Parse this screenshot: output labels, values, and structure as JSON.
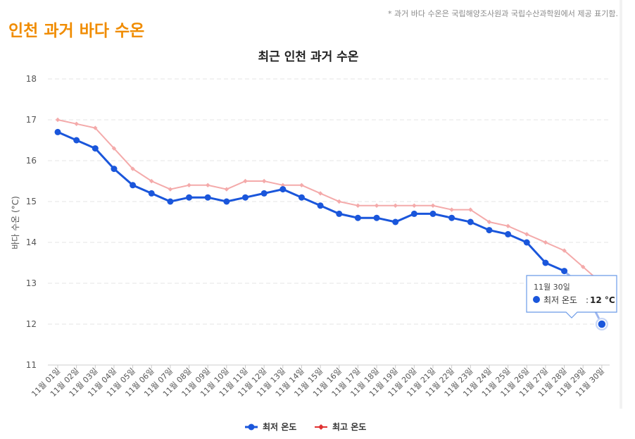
{
  "page": {
    "title": "인천 과거 바다 수온",
    "source_note": "* 과거 바다 수온은 국립해양조사원과 국립수산과학원에서 제공 표기함."
  },
  "colors": {
    "min_series": "#1a56db",
    "max_series": "#f4aaaa",
    "max_legend": "#e03131",
    "title_accent": "#f08c00"
  },
  "chart_data": {
    "type": "line",
    "title": "최근 인천 과거 수온",
    "ylabel": "바다 수온 (°C)",
    "xlabel": "",
    "ylim": [
      11,
      18
    ],
    "yticks": [
      "11",
      "12",
      "13",
      "14",
      "15",
      "16",
      "17",
      "18"
    ],
    "grid": true,
    "legend_position": "bottom",
    "categories": [
      "11월 01일",
      "11월 02일",
      "11월 03일",
      "11월 04일",
      "11월 05일",
      "11월 06일",
      "11월 07일",
      "11월 08일",
      "11월 09일",
      "11월 10일",
      "11월 11일",
      "11월 12일",
      "11월 13일",
      "11월 14일",
      "11월 15일",
      "11월 16일",
      "11월 17일",
      "11월 18일",
      "11월 19일",
      "11월 20일",
      "11월 21일",
      "11월 22일",
      "11월 23일",
      "11월 24일",
      "11월 25일",
      "11월 26일",
      "11월 27일",
      "11월 28일",
      "11월 29일",
      "11월 30일"
    ],
    "series": [
      {
        "name": "최저 온도",
        "values": [
          16.7,
          16.5,
          16.3,
          15.8,
          15.4,
          15.2,
          15.0,
          15.1,
          15.1,
          15.0,
          15.1,
          15.2,
          15.3,
          15.1,
          14.9,
          14.7,
          14.6,
          14.6,
          14.5,
          14.7,
          14.7,
          14.6,
          14.5,
          14.3,
          14.2,
          14.0,
          13.5,
          13.3,
          12.9,
          12.0
        ]
      },
      {
        "name": "최고 온도",
        "values": [
          17.0,
          16.9,
          16.8,
          16.3,
          15.8,
          15.5,
          15.3,
          15.4,
          15.4,
          15.3,
          15.5,
          15.5,
          15.4,
          15.4,
          15.2,
          15.0,
          14.9,
          14.9,
          14.9,
          14.9,
          14.9,
          14.8,
          14.8,
          14.5,
          14.4,
          14.2,
          14.0,
          13.8,
          13.4,
          13.0
        ]
      }
    ],
    "tooltip": {
      "date": "11월 30일",
      "label": "최저 온도",
      "value": "12 °C"
    }
  }
}
